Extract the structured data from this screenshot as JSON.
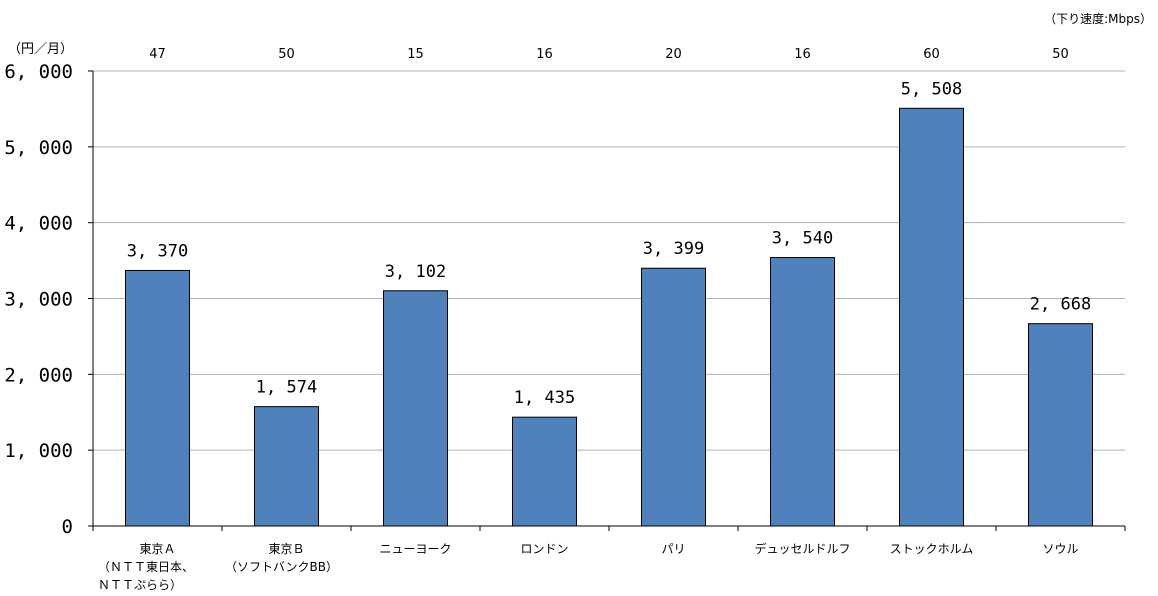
{
  "chart_data": {
    "type": "bar",
    "categories": [
      "東京Ａ",
      "東京Ｂ",
      "ニューヨーク",
      "ロンドン",
      "パリ",
      "デュッセルドルフ",
      "ストックホルム",
      "ソウル"
    ],
    "category_sublabels": [
      "（ＮＴＴ東日本、\nＮＴＴぷらら）",
      "（ソフトバンクBB）",
      "",
      "",
      "",
      "",
      "",
      ""
    ],
    "values": [
      3370,
      1574,
      3102,
      1435,
      3399,
      3540,
      5508,
      2668
    ],
    "value_labels": [
      "3, 370",
      "1, 574",
      "3, 102",
      "1, 435",
      "3, 399",
      "3, 540",
      "5, 508",
      "2, 668"
    ],
    "speed_labels": [
      "47",
      "50",
      "15",
      "16",
      "20",
      "16",
      "60",
      "50"
    ],
    "y_ticks": [
      0,
      1000,
      2000,
      3000,
      4000,
      5000,
      6000
    ],
    "y_tick_labels": [
      "0",
      "1, 000",
      "2, 000",
      "3, 000",
      "4, 000",
      "5, 000",
      "6, 000"
    ],
    "ylim": [
      0,
      6000
    ],
    "ylabel": "（円／月）",
    "secondary_label": "（下り速度:Mbps）",
    "grid": true,
    "bar_color": "#4f81bd"
  }
}
